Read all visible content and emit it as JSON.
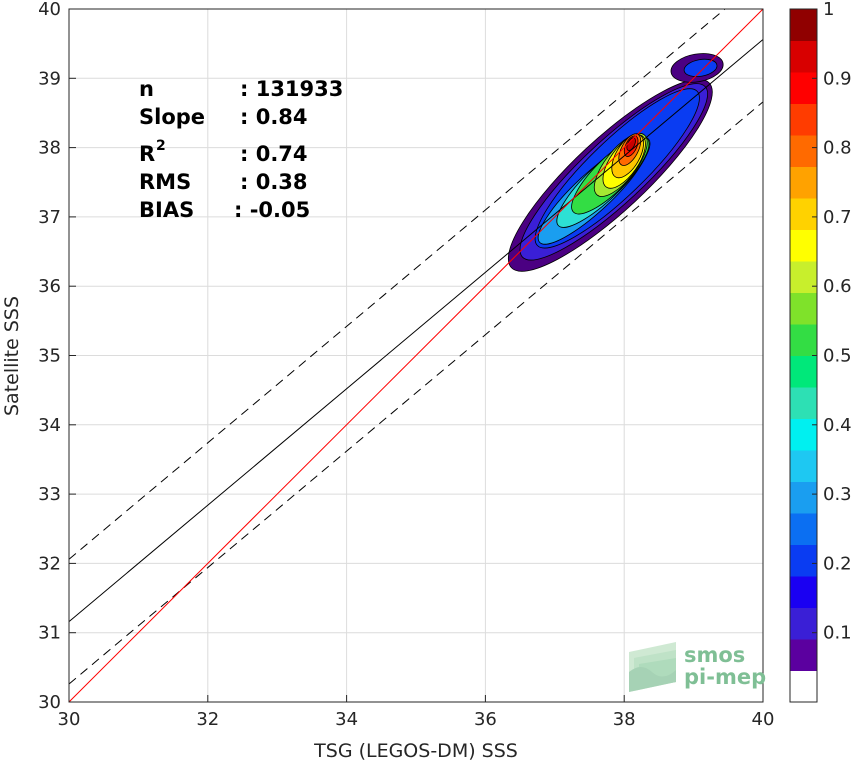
{
  "chart_data": {
    "type": "heatmap",
    "xlabel": "TSG (LEGOS-DM) SSS",
    "ylabel": "Satellite SSS",
    "xlim": [
      30,
      40
    ],
    "ylim": [
      30,
      40
    ],
    "x_ticks": [
      "30",
      "32",
      "34",
      "36",
      "38",
      "40"
    ],
    "y_ticks": [
      "30",
      "31",
      "32",
      "33",
      "34",
      "35",
      "36",
      "37",
      "38",
      "39",
      "40"
    ],
    "grid": true,
    "stats": {
      "n_label": "n",
      "n_value": ": 131933",
      "slope_label": "Slope",
      "slope_value": ": 0.84",
      "r2_label": "R",
      "r2_sup": "2",
      "r2_value": ": 0.74",
      "rms_label": "RMS",
      "rms_value": ": 0.38",
      "bias_label": "BIAS",
      "bias_value": ": -0.05"
    },
    "lines": {
      "identity": {
        "slope": 1.0,
        "intercept": 0.0,
        "color": "#ff0000"
      },
      "regression": {
        "slope": 0.84,
        "intercept": 5.96,
        "color": "#000000"
      },
      "upper_bound": {
        "slope": 0.84,
        "intercept": 6.86,
        "color": "#000000",
        "style": "dashed"
      },
      "lower_bound": {
        "slope": 0.84,
        "intercept": 5.06,
        "color": "#000000",
        "style": "dashed"
      }
    },
    "density_peak": {
      "x": 38.1,
      "y": 38.05
    },
    "contours": [
      {
        "level": 0.05,
        "color": "#4b0082",
        "cx": 37.8,
        "cy": 37.6,
        "rx": 1.95,
        "ry": 0.52,
        "angle": 43
      },
      {
        "level": 0.1,
        "color": "#3a1fd6",
        "cx": 37.85,
        "cy": 37.65,
        "rx": 1.8,
        "ry": 0.45,
        "angle": 43
      },
      {
        "level": 0.2,
        "color": "#0a3cf2",
        "cx": 37.9,
        "cy": 37.7,
        "rx": 1.6,
        "ry": 0.4,
        "angle": 44
      },
      {
        "level": 0.3,
        "color": "#1a9ef0",
        "cx": 37.55,
        "cy": 37.35,
        "rx": 1.05,
        "ry": 0.27,
        "angle": 43
      },
      {
        "level": 0.4,
        "color": "#2de0d4",
        "cx": 37.7,
        "cy": 37.5,
        "rx": 0.9,
        "ry": 0.25,
        "angle": 44
      },
      {
        "level": 0.5,
        "color": "#33dd44",
        "cx": 37.8,
        "cy": 37.6,
        "rx": 0.75,
        "ry": 0.24,
        "angle": 45
      },
      {
        "level": 0.6,
        "color": "#a6e832",
        "cx": 37.95,
        "cy": 37.75,
        "rx": 0.55,
        "ry": 0.22,
        "angle": 52
      },
      {
        "level": 0.65,
        "color": "#ffff00",
        "cx": 38.0,
        "cy": 37.8,
        "rx": 0.45,
        "ry": 0.2,
        "angle": 55
      },
      {
        "level": 0.7,
        "color": "#ffc600",
        "cx": 38.05,
        "cy": 37.88,
        "rx": 0.35,
        "ry": 0.17,
        "angle": 60
      },
      {
        "level": 0.8,
        "color": "#ff6a00",
        "cx": 38.08,
        "cy": 37.97,
        "rx": 0.25,
        "ry": 0.12,
        "angle": 62
      },
      {
        "level": 0.9,
        "color": "#ff1800",
        "cx": 38.1,
        "cy": 38.02,
        "rx": 0.16,
        "ry": 0.08,
        "angle": 65
      },
      {
        "level": 0.95,
        "color": "#c80000",
        "cx": 38.1,
        "cy": 38.05,
        "rx": 0.1,
        "ry": 0.05,
        "angle": 65
      },
      {
        "level": 0.05,
        "color": "#4b0082",
        "cx": 39.05,
        "cy": 39.15,
        "rx": 0.38,
        "ry": 0.2,
        "angle": 10
      },
      {
        "level": 0.2,
        "color": "#0a3cf2",
        "cx": 39.1,
        "cy": 39.15,
        "rx": 0.24,
        "ry": 0.12,
        "angle": 10
      }
    ],
    "colorbar": {
      "range": [
        0,
        1
      ],
      "tick_labels": [
        "0.1",
        "0.2",
        "0.3",
        "0.4",
        "0.5",
        "0.6",
        "0.7",
        "0.8",
        "0.9",
        "1"
      ],
      "colors": [
        "#ffffff",
        "#5b009f",
        "#3a1fd6",
        "#1a00f2",
        "#0a3cf2",
        "#0b6ff2",
        "#1a9ef0",
        "#1ec8f2",
        "#00f0f0",
        "#2de0b4",
        "#00e87a",
        "#33dd44",
        "#7fe22a",
        "#c8ef2c",
        "#ffff00",
        "#ffd200",
        "#ffa200",
        "#ff6a00",
        "#ff3c00",
        "#ff0000",
        "#d80000",
        "#900000"
      ]
    }
  },
  "watermark": {
    "line1": "smos",
    "line2": "pi-mep"
  }
}
